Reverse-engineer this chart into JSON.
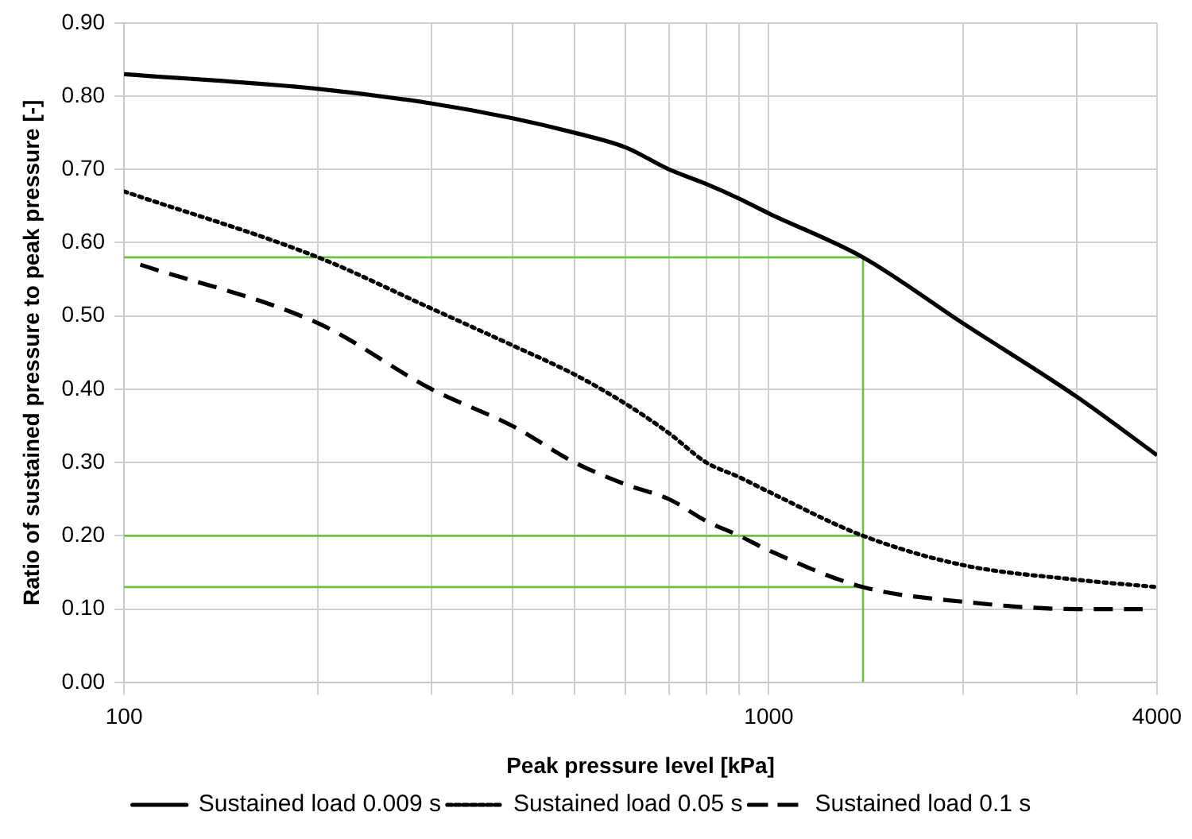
{
  "chart_data": {
    "type": "line",
    "xlabel": "Peak pressure level [kPa]",
    "ylabel": "Ratio of sustained pressure to peak pressure [-]",
    "log": "x",
    "xlim": [
      100,
      4000
    ],
    "ylim": [
      0,
      0.9
    ],
    "xticks": [
      100,
      {
        "value": 200,
        "label": null
      },
      {
        "value": 300,
        "label": null
      },
      {
        "value": 400,
        "label": null
      },
      {
        "value": 500,
        "label": null
      },
      {
        "value": 600,
        "label": null
      },
      {
        "value": 700,
        "label": null
      },
      {
        "value": 800,
        "label": null
      },
      {
        "value": 900,
        "label": null
      },
      1000,
      {
        "value": 2000,
        "label": null
      },
      {
        "value": 3000,
        "label": null
      },
      4000
    ],
    "yticks": [
      {
        "value": 0,
        "label": "0.00"
      },
      {
        "value": 0.1,
        "label": "0.10"
      },
      {
        "value": 0.2,
        "label": "0.20"
      },
      {
        "value": 0.3,
        "label": "0.30"
      },
      {
        "value": 0.4,
        "label": "0.40"
      },
      {
        "value": 0.5,
        "label": "0.50"
      },
      {
        "value": 0.6,
        "label": "0.60"
      },
      {
        "value": 0.7,
        "label": "0.70"
      },
      {
        "value": 0.8,
        "label": "0.80"
      },
      {
        "value": 0.9,
        "label": "0.90"
      }
    ],
    "grid": true,
    "legend": "bottom",
    "marker": "none",
    "series": [
      {
        "name": "Sustained load 0.009 s",
        "color": "#000000",
        "line_style": "solid",
        "x": [
          100,
          200,
          300,
          400,
          500,
          600,
          700,
          800,
          900,
          1000,
          1400,
          2000,
          3000,
          4000
        ],
        "values": [
          0.83,
          0.81,
          0.79,
          0.77,
          0.75,
          0.73,
          0.7,
          0.68,
          0.66,
          0.64,
          0.58,
          0.49,
          0.39,
          0.31
        ]
      },
      {
        "name": "Sustained load 0.05 s",
        "color": "#000000",
        "line_style": "dotted",
        "x": [
          100,
          200,
          300,
          400,
          500,
          600,
          700,
          800,
          900,
          1000,
          1400,
          2000,
          3000,
          4000
        ],
        "values": [
          0.67,
          0.58,
          0.51,
          0.46,
          0.42,
          0.38,
          0.34,
          0.3,
          0.28,
          0.26,
          0.2,
          0.16,
          0.14,
          0.13
        ]
      },
      {
        "name": "Sustained load 0.1 s",
        "color": "#000000",
        "line_style": "dashed",
        "x": [
          106,
          200,
          300,
          400,
          500,
          600,
          700,
          800,
          900,
          1000,
          1400,
          2000,
          3000,
          3800
        ],
        "values": [
          0.57,
          0.49,
          0.4,
          0.35,
          0.3,
          0.27,
          0.25,
          0.22,
          0.2,
          0.18,
          0.13,
          0.11,
          0.1,
          0.1
        ]
      },
      {
        "color": "#70c040",
        "line_style": "solid",
        "x": [
          100,
          1400,
          1400
        ],
        "values": [
          0.58,
          0.58,
          0
        ]
      },
      {
        "color": "#70c040",
        "line_style": "solid",
        "x": [
          100,
          1400
        ],
        "values": [
          0.2,
          0.2
        ]
      },
      {
        "color": "#70c040",
        "line_style": "solid",
        "x": [
          100,
          1400
        ],
        "values": [
          0.13,
          0.13
        ]
      }
    ]
  }
}
